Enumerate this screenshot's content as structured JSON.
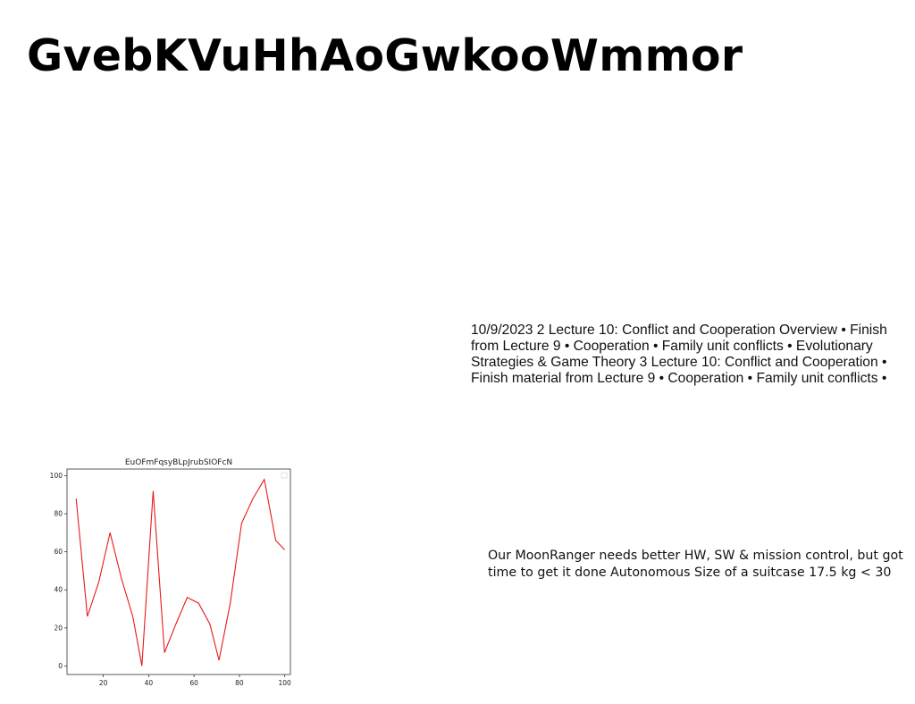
{
  "slide": {
    "title": "GvebKVuHhAoGwkooWmmor",
    "paragraph_1": "10/9/2023 2 Lecture 10: Conflict and Cooperation Overview • Finish from Lecture 9 • Cooperation • Family unit conflicts • Evolutionary Strategies & Game Theory 3 Lecture 10: Conflict and Cooperation • Finish material from Lecture 9 • Cooperation • Family unit conflicts •",
    "paragraph_2": "Our MoonRanger needs better HW, SW & mission control, but got time to get it done Autonomous Size of a suitcase 17.5 kg < 30"
  },
  "chart_data": {
    "type": "line",
    "title": "EuOFmFqsyBLpJrubSIOFcN",
    "xlabel": "",
    "ylabel": "",
    "x": [
      8,
      13,
      18,
      23,
      28,
      33,
      37,
      42,
      47,
      52,
      57,
      62,
      67,
      71,
      76,
      81,
      86,
      91,
      96,
      100
    ],
    "series": [
      {
        "values": [
          88,
          26,
          44,
          70,
          46,
          26,
          0,
          92,
          7,
          22,
          36,
          33,
          22,
          3,
          33,
          75,
          88,
          98,
          66,
          61
        ],
        "color": "#e8191b"
      }
    ],
    "xticks": [
      20,
      40,
      60,
      80,
      100
    ],
    "yticks": [
      0,
      20,
      40,
      60,
      80,
      100
    ],
    "xlim": [
      4,
      102.5
    ],
    "ylim": [
      -4.5,
      103.5
    ],
    "grid": false,
    "legend": "top-right"
  }
}
